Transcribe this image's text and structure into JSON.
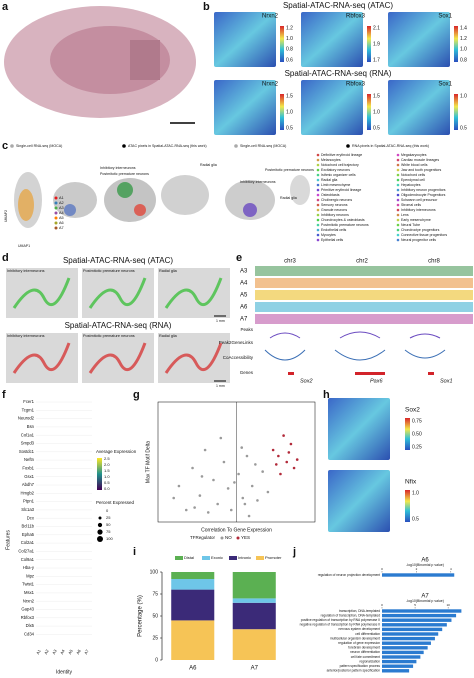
{
  "a": {
    "label": "a"
  },
  "b": {
    "label": "b",
    "atac_title": "Spatial-ATAC-RNA-seq (ATAC)",
    "rna_title": "Spatial-ATAC-RNA-seq (RNA)",
    "atac_genes": [
      {
        "name": "Nrxn2",
        "ticks": [
          "1.2",
          "1.0",
          "0.8",
          "0.6"
        ]
      },
      {
        "name": "Rbfox3",
        "ticks": [
          "2.1",
          "1.9",
          "1.7"
        ]
      },
      {
        "name": "Sox1",
        "ticks": [
          "1.4",
          "1.2",
          "1.0",
          "0.8"
        ]
      }
    ],
    "rna_genes": [
      {
        "name": "Nrxn2",
        "ticks": [
          "1.5",
          "1.0",
          "0.5"
        ]
      },
      {
        "name": "Rbfox3",
        "ticks": [
          "1.5",
          "1.0",
          "0.5"
        ]
      },
      {
        "name": "Sox1",
        "ticks": [
          "1.0",
          "0.5"
        ]
      }
    ]
  },
  "c": {
    "label": "c",
    "legend": [
      "Single-cell RNA-seq (MOCA)",
      "ATAC pixels in Spatial-ATAC-RNA-seq (this work)",
      "Single-cell RNA-seq (MOCA)",
      "RNA pixels in Spatial-ATAC-RNA-seq (this work)"
    ],
    "annotations": [
      "Inhibitory interneurons",
      "Postmitotic premature neurons",
      "Radial glia",
      "Postmitotic premature neurons",
      "Inhibitory interneurons",
      "Radial glia"
    ],
    "axis_x": "UMAP1",
    "axis_y": "UMAP2",
    "clusters": [
      "A1",
      "A2",
      "A3",
      "A4",
      "A5",
      "A6",
      "A7"
    ],
    "cell_types": [
      "Definitive erythroid lineage",
      "Melanocytes",
      "Notochord cell trajectory",
      "Excitatory neurons",
      "Isthmic organizer cells",
      "Radial glia",
      "Limb mesenchyme",
      "Primitive erythroid lineage",
      "Osteoblasts",
      "Cholinergic neurons",
      "Sensory neurons",
      "Granule neurons",
      "Inhibitory neurons",
      "Chondrocytes & osteoblasts",
      "Postmitotic premature neurons",
      "Endothelial cells",
      "Myocytes",
      "Epithelial cells",
      "Megakaryocytes",
      "Cardiac muscle lineages",
      "White blood cells",
      "Jaw and tooth progenitors",
      "Notochord cells",
      "Ependymal cell",
      "Hepatocytes",
      "Inhibitory neuron progenitors",
      "Oligodendrocyte Progenitors",
      "Schwann cell precursor",
      "Stromal cells",
      "Inhibitory interneurons",
      "Lens",
      "Early mesenchyme",
      "Neural Tube",
      "Chondroctye progenitors",
      "Connective tissue progenitors",
      "Neural progenitor cells"
    ]
  },
  "d": {
    "label": "d",
    "atac_title": "Spatial-ATAC-RNA-seq (ATAC)",
    "rna_title": "Spatial-ATAC-RNA-seq (RNA)",
    "panels": [
      "Inhibitory interneurons",
      "Postmitotic premature neurons",
      "Radial glia"
    ],
    "scale": "1 mm"
  },
  "e": {
    "label": "e",
    "chromosomes": [
      "chr3",
      "chr2",
      "chr8"
    ],
    "tracks": [
      "A3",
      "A4",
      "A5",
      "A6",
      "A7"
    ],
    "rows": [
      "Peaks",
      "Peak2GeneLinks",
      "CoAccessibility",
      "Genes"
    ],
    "genes": [
      "Sox2",
      "Pax6",
      "Sox1"
    ]
  },
  "f": {
    "label": "f",
    "features": [
      "Fcer1",
      "Tcgm1",
      "Neurod2",
      "Bsn",
      "Col1a1",
      "Smpd3",
      "Sostdc1",
      "Neftn",
      "Foxb1",
      "Gsx1",
      "Abdh7",
      "Hmgb2",
      "Ptpn1",
      "Slc1a3",
      "Dcx",
      "Bcl11b",
      "Epha5",
      "Col2a1",
      "Col27a1",
      "Col9a1",
      "Hba-y",
      "Mpz",
      "Twist1",
      "Msx1",
      "Nrxn2",
      "Gap43",
      "Rbfox3",
      "Dlx5",
      "Cd34"
    ],
    "identities": [
      "A1",
      "A2",
      "A3",
      "A4",
      "A5",
      "A6",
      "A7"
    ],
    "axis_y": "Features",
    "axis_x": "Identity",
    "avg_title": "Average Expression",
    "avg_ticks": [
      "2.5",
      "2.0",
      "1.5",
      "1.0",
      "0.5",
      "0.0"
    ],
    "pct_title": "Percent Expressed",
    "pct_sizes": [
      0,
      25,
      50,
      75,
      100
    ]
  },
  "g": {
    "label": "g",
    "axis_y": "Max TF Motif Delta",
    "axis_x": "Correlation To Gene Expression",
    "legend_title": "TFRegulator"
  },
  "h": {
    "label": "h",
    "genes": [
      {
        "name": "Sox2",
        "ticks": [
          "0.75",
          "0.50",
          "0.25"
        ]
      },
      {
        "name": "Nfix",
        "ticks": [
          "1.0",
          "0.5"
        ]
      }
    ]
  },
  "i": {
    "label": "i"
  },
  "j": {
    "label": "j"
  },
  "chart_data": [
    {
      "type": "stacked_bar",
      "ylabel": "Percentage (%)",
      "categories": [
        "A6",
        "A7"
      ],
      "series": [
        {
          "name": "Distal",
          "color": "#5bb052",
          "values": [
            8,
            30
          ]
        },
        {
          "name": "Exonic",
          "color": "#6ec6e8",
          "values": [
            12,
            5
          ]
        },
        {
          "name": "Intronic",
          "color": "#3b2a78",
          "values": [
            35,
            30
          ]
        },
        {
          "name": "Promoter",
          "color": "#f6c456",
          "values": [
            45,
            35
          ]
        }
      ],
      "ylim": [
        0,
        100
      ],
      "yticks": [
        0,
        25,
        50,
        75,
        100
      ]
    },
    {
      "type": "scatter",
      "series": [
        {
          "name": "NO",
          "color": "#9a9a9a",
          "x": [
            -0.55,
            -0.42,
            -0.35,
            -0.3,
            -0.22,
            -0.18,
            -0.12,
            -0.08,
            -0.05,
            0.02,
            0.06,
            0.1,
            0.15,
            0.2,
            0.25,
            -0.4,
            -0.27,
            -0.15,
            0.05,
            0.12,
            -0.6,
            -0.48,
            0.3,
            0.18,
            -0.02,
            -0.33,
            0.08
          ],
          "values": [
            0.3,
            0.45,
            0.22,
            0.6,
            0.35,
            0.15,
            0.5,
            0.28,
            0.1,
            0.4,
            0.2,
            0.55,
            0.3,
            0.18,
            0.42,
            0.12,
            0.08,
            0.7,
            0.62,
            0.05,
            0.2,
            0.1,
            0.25,
            0.48,
            0.33,
            0.38,
            0.15
          ]
        },
        {
          "name": "YES",
          "color": "#b22a3a",
          "x": [
            0.35,
            0.4,
            0.45,
            0.48,
            0.52,
            0.55,
            0.42,
            0.5,
            0.58,
            0.38
          ],
          "values": [
            0.6,
            0.55,
            0.72,
            0.5,
            0.65,
            0.45,
            0.4,
            0.58,
            0.52,
            0.48
          ]
        }
      ],
      "xlim": [
        -0.75,
        0.75
      ],
      "ylim": [
        0,
        1
      ]
    },
    {
      "type": "barh",
      "title": "A6",
      "xlabel": "-log10(Binomial p value)",
      "color": "#2b7bd0",
      "categories": [
        "regulation of neuron projection development"
      ],
      "values": [
        4.2
      ],
      "xlim": [
        0,
        5
      ],
      "xticks": [
        0,
        2,
        4
      ]
    },
    {
      "type": "barh",
      "title": "A7",
      "xlabel": "-log10(Binomial p value)",
      "color": "#2b7bd0",
      "categories": [
        "transcription, DNA-templated",
        "regulation of transcription, DNA-templated",
        "positive regulation of transcription by RNA polymerase II",
        "negative regulation of transcription by RNA polymerase II",
        "nervous system development",
        "cell differentiation",
        "multicellular organism development",
        "regulation of gene expression",
        "forebrain development",
        "neuron differentiation",
        "cell fate commitment",
        "regionalization",
        "pattern specification process",
        "anterior/posterior pattern specification"
      ],
      "values": [
        12,
        11.2,
        10.5,
        9.8,
        9.1,
        8.5,
        8.0,
        7.4,
        6.9,
        6.3,
        5.8,
        5.2,
        4.7,
        4.1
      ],
      "xlim": [
        0,
        13
      ],
      "xticks": [
        0,
        5,
        10
      ]
    }
  ]
}
